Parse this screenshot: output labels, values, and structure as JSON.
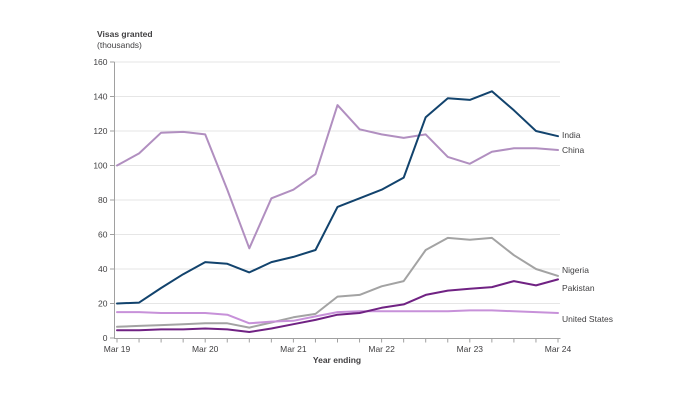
{
  "chart_data": {
    "type": "line",
    "title": "Visas granted",
    "subtitle": "(thousands)",
    "xlabel": "Year ending",
    "ylabel": "",
    "ylim": [
      0,
      160
    ],
    "ytick_step": 20,
    "ytick_labels": [
      "0",
      "20",
      "40",
      "60",
      "80",
      "100",
      "120",
      "140",
      "160"
    ],
    "x_major_labels": [
      "Mar 19",
      "Mar 20",
      "Mar 21",
      "Mar 22",
      "Mar 23",
      "Mar 24"
    ],
    "x": [
      "Mar 19",
      "Jun 19",
      "Sep 19",
      "Dec 19",
      "Mar 20",
      "Jun 20",
      "Sep 20",
      "Dec 20",
      "Mar 21",
      "Jun 21",
      "Sep 21",
      "Dec 21",
      "Mar 22",
      "Jun 22",
      "Sep 22",
      "Dec 22",
      "Mar 23",
      "Jun 23",
      "Sep 23",
      "Dec 23",
      "Mar 24"
    ],
    "grid": "horizontal",
    "legend_position": "labels-at-line-ends-right",
    "series": [
      {
        "name": "India",
        "color": "#12436D",
        "values": [
          20,
          20.5,
          29,
          37,
          44,
          43,
          38,
          44,
          47,
          51,
          76,
          81,
          86,
          93,
          128,
          139,
          138,
          143,
          132,
          120,
          117
        ]
      },
      {
        "name": "China",
        "color": "#B18FC0",
        "values": [
          100,
          107,
          119,
          119.5,
          118,
          86,
          52,
          81,
          86,
          95,
          135,
          121,
          118,
          116,
          118,
          105,
          101,
          108,
          110,
          110,
          109
        ]
      },
      {
        "name": "Nigeria",
        "color": "#A3A3A3",
        "values": [
          6.5,
          7,
          7.5,
          8,
          8.5,
          8.5,
          6,
          9,
          12,
          14,
          24,
          25,
          30,
          33,
          51,
          58,
          57,
          58,
          48,
          40,
          36
        ]
      },
      {
        "name": "Pakistan",
        "color": "#702283",
        "values": [
          4.5,
          4.5,
          5,
          5,
          5.5,
          5,
          3.5,
          5.5,
          8,
          10.5,
          13.5,
          14.5,
          17.5,
          19.5,
          25,
          27.5,
          28.5,
          29.5,
          33,
          30.5,
          34
        ]
      },
      {
        "name": "United States",
        "color": "#C791D9",
        "values": [
          15,
          15,
          14.5,
          14.5,
          14.5,
          13.5,
          8.5,
          9.5,
          10,
          12.5,
          15,
          15.5,
          15.5,
          15.5,
          15.5,
          15.5,
          16,
          16,
          15.5,
          15,
          14.5
        ]
      }
    ],
    "colors": {
      "axis": "#A0A0A0",
      "grid": "#E6E6E6",
      "text": "#414042"
    }
  }
}
